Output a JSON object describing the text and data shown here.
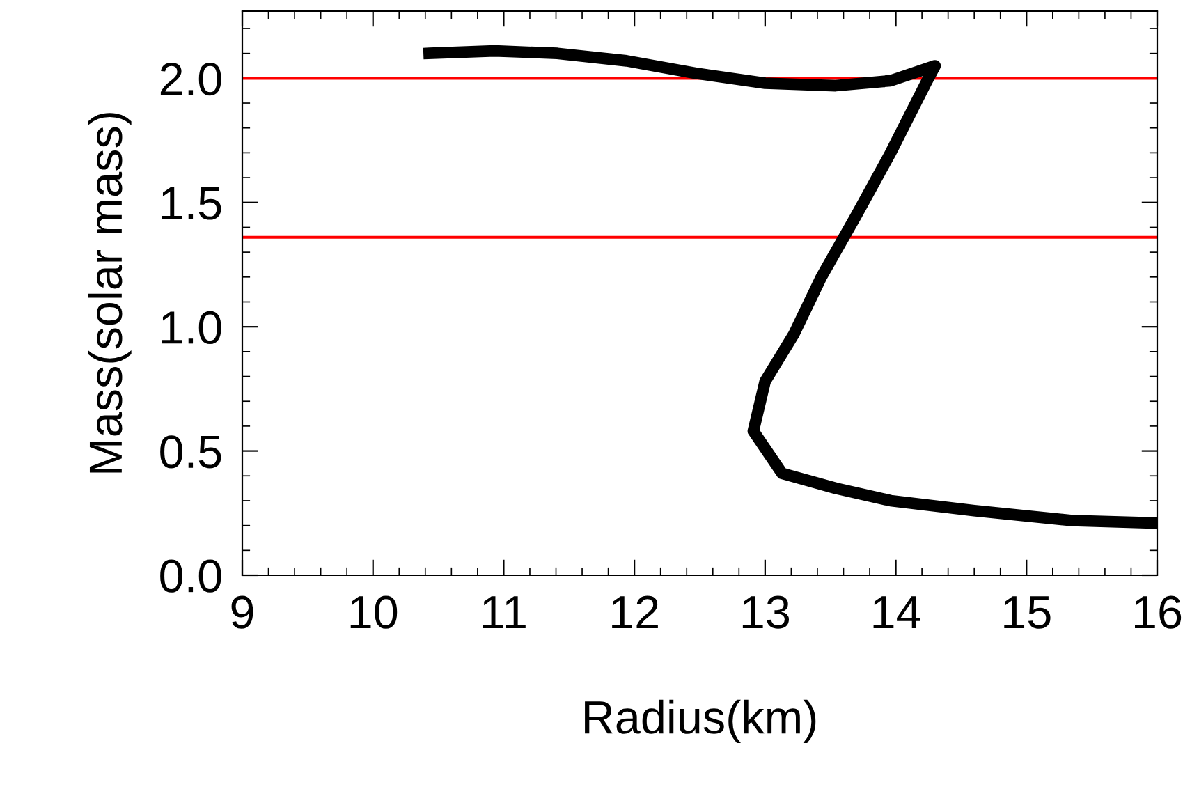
{
  "chart_data": {
    "type": "line",
    "xlabel": "Radius(km)",
    "ylabel": "Mass(solar mass)",
    "xlim": [
      9,
      16
    ],
    "ylim": [
      0,
      2.27
    ],
    "xticks": [
      9,
      10,
      11,
      12,
      13,
      14,
      15,
      16
    ],
    "yticks": [
      {
        "value": 0,
        "label": "0.0"
      },
      {
        "value": 0.5,
        "label": "0.5"
      },
      {
        "value": 1,
        "label": "1.0"
      },
      {
        "value": 1.5,
        "label": "1.5"
      },
      {
        "value": 2,
        "label": "2.0"
      }
    ],
    "grid": false,
    "legend": false,
    "marker": "none",
    "line_style": "solid",
    "series": [
      {
        "color": "#000000",
        "x": [
          10.43,
          10.93,
          11.41,
          11.94,
          12.47,
          13.0,
          13.54,
          13.96,
          14.3,
          14.23,
          13.96,
          13.7,
          13.43,
          13.22,
          13.0,
          12.91,
          13.13,
          13.54,
          13.96,
          14.6,
          15.35,
          16.0
        ],
        "values": [
          2.1,
          2.11,
          2.1,
          2.07,
          2.02,
          1.98,
          1.97,
          1.99,
          2.05,
          1.98,
          1.7,
          1.45,
          1.2,
          0.97,
          0.78,
          0.58,
          0.41,
          0.35,
          0.3,
          0.26,
          0.22,
          0.21
        ]
      }
    ],
    "ref_lines": [
      {
        "axis": "y",
        "value": 2.0,
        "color": "#ff0000"
      },
      {
        "axis": "y",
        "value": 1.36,
        "color": "#ff0000"
      }
    ]
  }
}
